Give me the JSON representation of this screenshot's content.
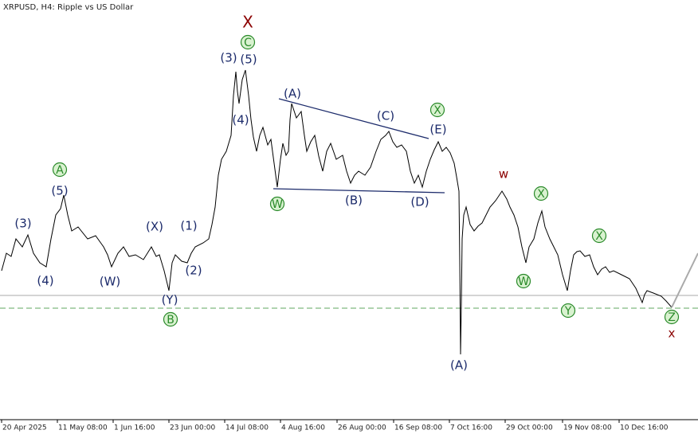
{
  "header": {
    "title": "XRPUSD, H4:  Ripple vs US Dollar"
  },
  "x_axis": {
    "labels": [
      "20 Apr 2025",
      "11 May 08:00",
      "1 Jun 16:00",
      "23 Jun 00:00",
      "14 Jul 08:00",
      "4 Aug 16:00",
      "26 Aug 00:00",
      "16 Sep 08:00",
      "7 Oct 16:00",
      "29 Oct 00:00",
      "19 Nov 08:00",
      "10 Dec 16:00"
    ]
  },
  "annotations": [
    "X",
    "C",
    "(3)",
    "(5)",
    "(4)",
    "(A)",
    "(C)",
    "X",
    "(E)",
    "W",
    "(B)",
    "(D)",
    "w",
    "X",
    "W",
    "X",
    "Y",
    "Z",
    "x",
    "(A)",
    "A",
    "(5)",
    "(3)",
    "(4)",
    "(W)",
    "(X)",
    "(1)",
    "(2)",
    "(Y)",
    "B"
  ]
}
